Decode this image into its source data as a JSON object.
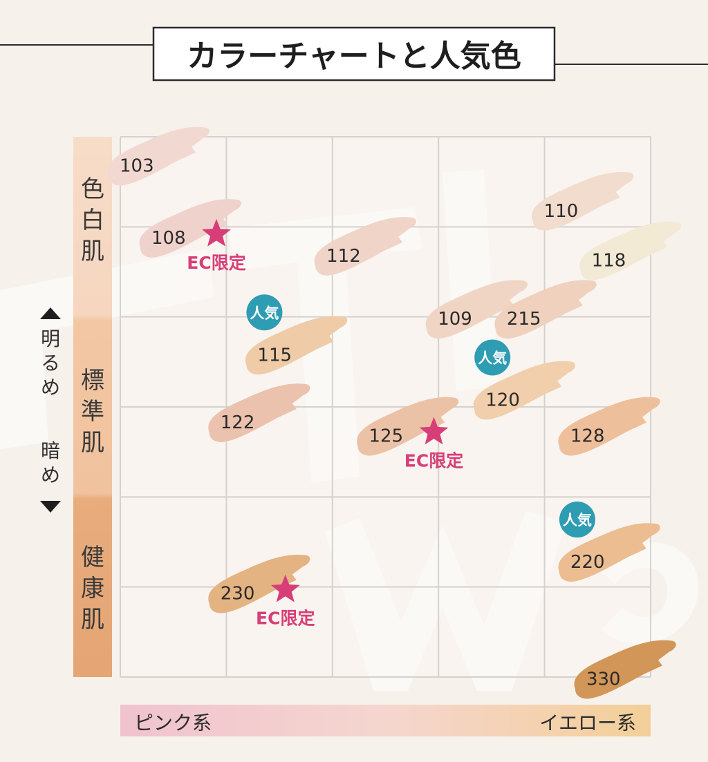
{
  "title": "カラーチャートと人気色",
  "y_axis": {
    "bright_label": "明るめ",
    "dark_label": "暗め",
    "bands": [
      "色白肌",
      "標準肌",
      "健康肌"
    ]
  },
  "x_axis": {
    "left_label": "ピンク系",
    "right_label": "イエロー系"
  },
  "badges": {
    "popular": "人気",
    "ec_limited": "EC限定"
  },
  "colors": {
    "grid": "#d4d1ce",
    "popular_badge": "#2e9cb2",
    "star": "#d73e78",
    "ec_text": "#d73e78",
    "band_light": "#f7ddc9",
    "band_mid": "#f3c8a5",
    "band_dark": "#e6a777",
    "axis_gradient_left": "#f0c3cf",
    "axis_gradient_right": "#f3cf98"
  },
  "chart_data": {
    "type": "scatter",
    "title": "カラーチャートと人気色",
    "x_axis_labels": [
      "ピンク系",
      "イエロー系"
    ],
    "y_axis_labels": [
      "明るめ",
      "暗め"
    ],
    "y_bands": [
      "色白肌",
      "標準肌",
      "健康肌"
    ],
    "grid": true,
    "xlim": [
      0,
      5
    ],
    "ylim": [
      0,
      6
    ],
    "points": [
      {
        "label": "103",
        "x": 0.15,
        "y": 0.25,
        "color": "#f1d9d1",
        "popular": false,
        "ec_limited": false
      },
      {
        "label": "108",
        "x": 0.45,
        "y": 1.05,
        "color": "#efd2cb",
        "popular": false,
        "ec_limited": true
      },
      {
        "label": "112",
        "x": 2.1,
        "y": 1.25,
        "color": "#f0d4c8",
        "popular": false,
        "ec_limited": false
      },
      {
        "label": "110",
        "x": 4.15,
        "y": 0.75,
        "color": "#f1dccd",
        "popular": false,
        "ec_limited": false
      },
      {
        "label": "118",
        "x": 4.6,
        "y": 1.3,
        "color": "#f3ead6",
        "popular": false,
        "ec_limited": false
      },
      {
        "label": "115",
        "x": 1.45,
        "y": 2.35,
        "color": "#efcba8",
        "popular": true,
        "ec_limited": false
      },
      {
        "label": "109",
        "x": 3.15,
        "y": 1.95,
        "color": "#f1d5c4",
        "popular": false,
        "ec_limited": false
      },
      {
        "label": "215",
        "x": 3.8,
        "y": 1.95,
        "color": "#efd1bd",
        "popular": false,
        "ec_limited": false
      },
      {
        "label": "120",
        "x": 3.6,
        "y": 2.85,
        "color": "#f1cfac",
        "popular": true,
        "ec_limited": false
      },
      {
        "label": "122",
        "x": 1.1,
        "y": 3.1,
        "color": "#ebc2ad",
        "popular": false,
        "ec_limited": false
      },
      {
        "label": "125",
        "x": 2.5,
        "y": 3.25,
        "color": "#ecc2a6",
        "popular": false,
        "ec_limited": true
      },
      {
        "label": "128",
        "x": 4.4,
        "y": 3.25,
        "color": "#eebf9b",
        "popular": false,
        "ec_limited": false
      },
      {
        "label": "220",
        "x": 4.4,
        "y": 4.65,
        "color": "#ebbd91",
        "popular": true,
        "ec_limited": false
      },
      {
        "label": "230",
        "x": 1.1,
        "y": 5.0,
        "color": "#e4b382",
        "popular": false,
        "ec_limited": true
      },
      {
        "label": "330",
        "x": 4.55,
        "y": 5.95,
        "color": "#d29658",
        "popular": false,
        "ec_limited": false
      }
    ]
  }
}
